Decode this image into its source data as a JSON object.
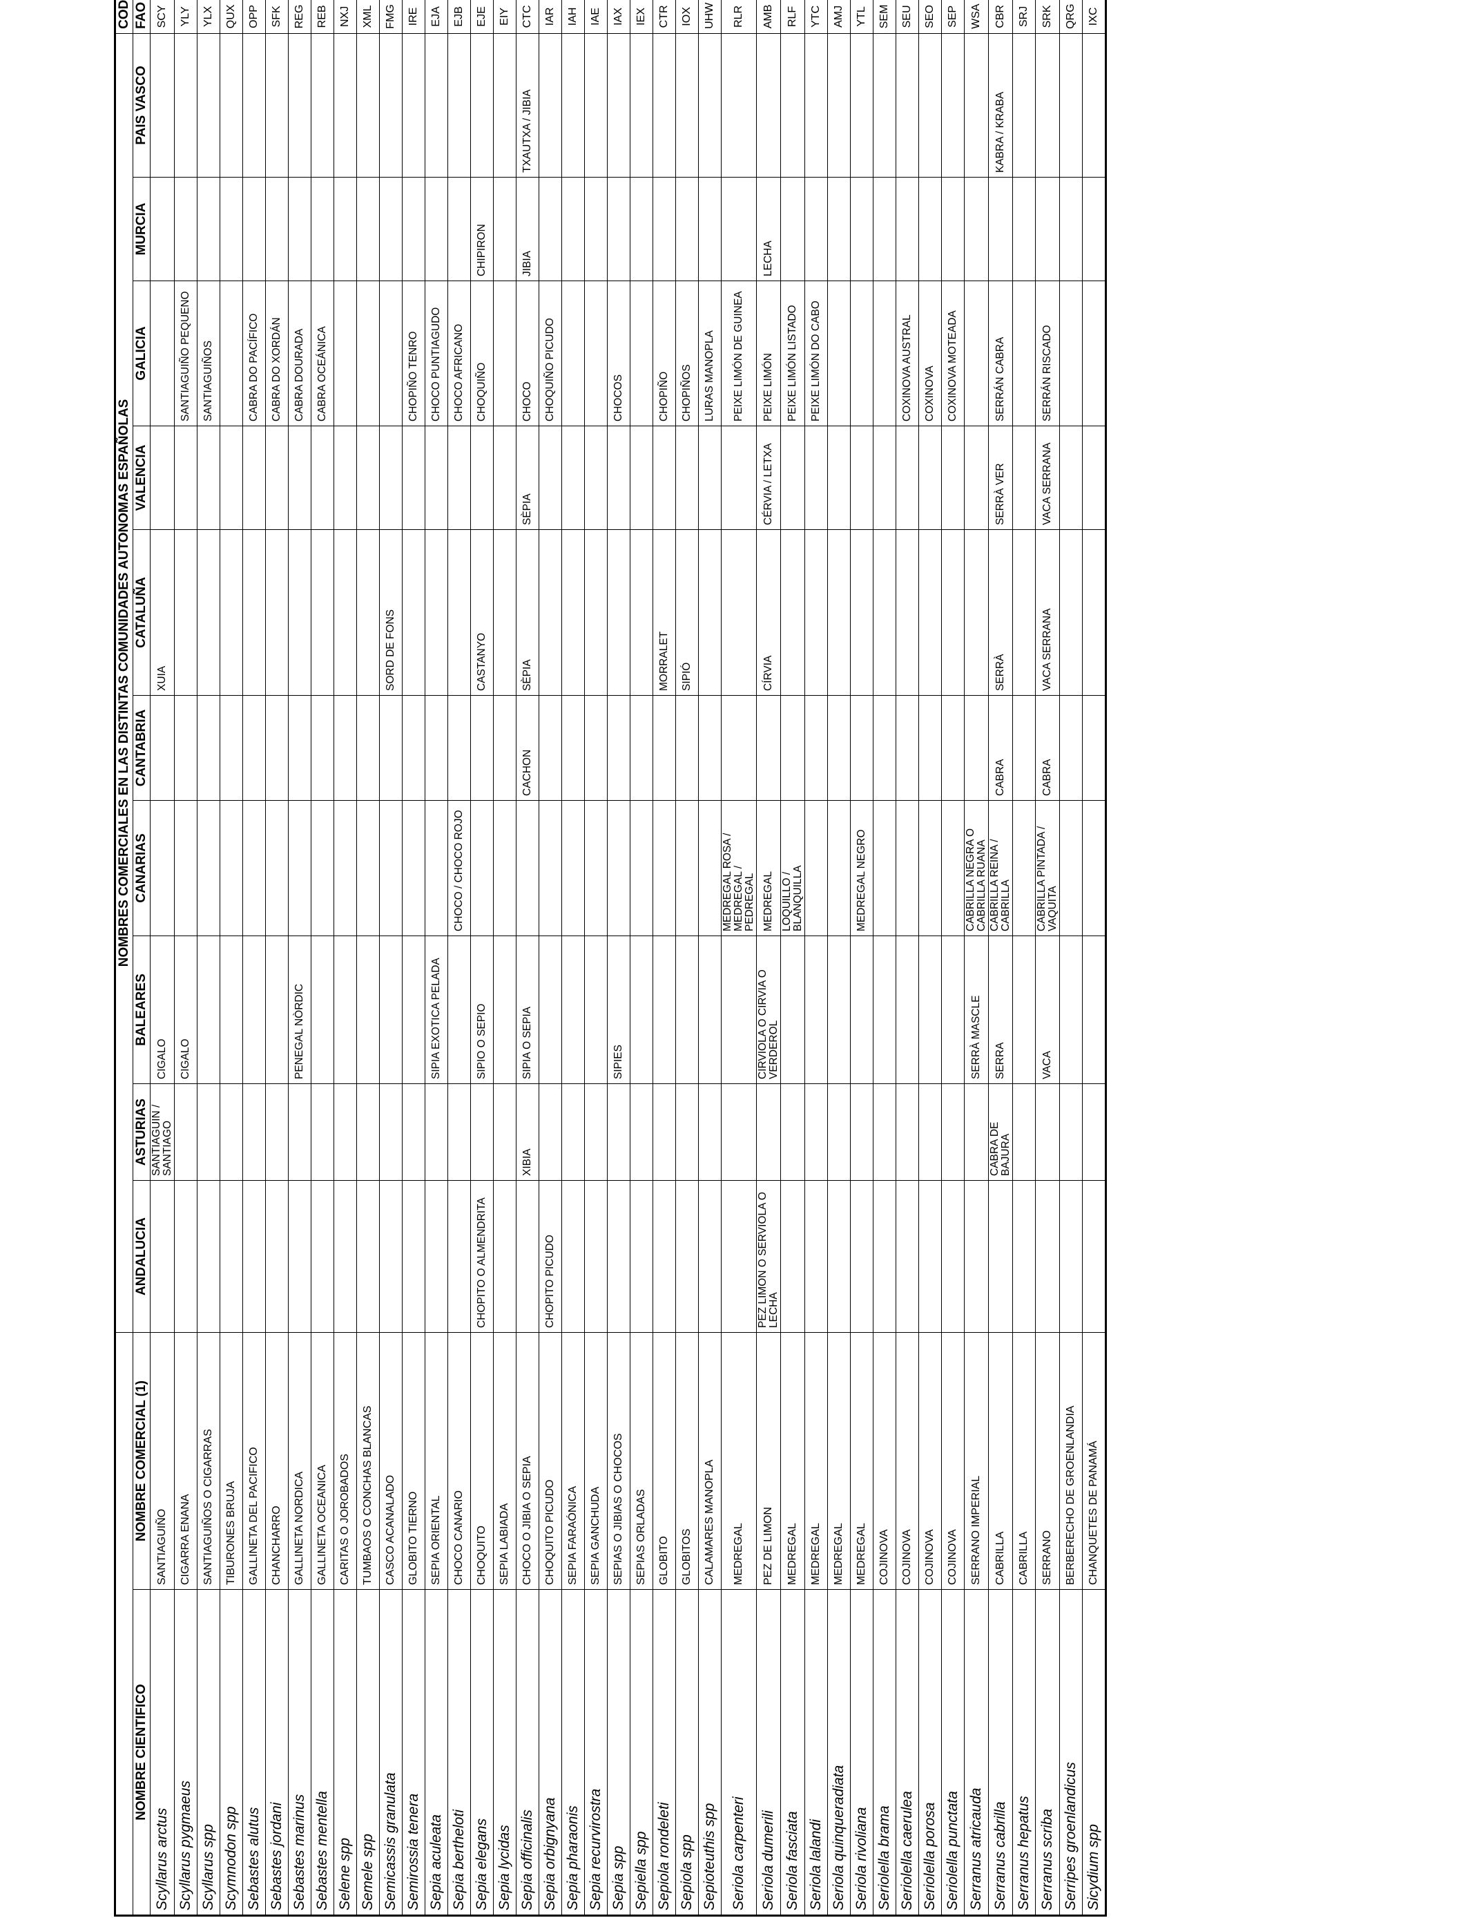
{
  "header": {
    "group_title": "NOMBRES COMERCIALES EN LAS DISTINTAS COMUNIDADES AUTONOMAS ESPAÑOLAS",
    "cod_label": "COD",
    "columns": [
      "NOMBRE CIENTIFICO",
      "NOMBRE COMERCIAL (1)",
      "ANDALUCIA",
      "ASTURIAS",
      "BALEARES",
      "CANARIAS",
      "CANTABRIA",
      "CATALUÑA",
      "VALENCIA",
      "GALICIA",
      "MURCIA",
      "PAIS VASCO",
      "FAO"
    ]
  },
  "rows": [
    [
      "Scyllarus arctus",
      "SANTIAGUIÑO",
      "",
      "SANTIAGUIN / SANTIAGO",
      "CIGALO",
      "",
      "",
      "XUIA",
      "",
      "",
      "",
      "",
      "SCY"
    ],
    [
      "Scyllarus pygmaeus",
      "CIGARRA ENANA",
      "",
      "",
      "CIGALO",
      "",
      "",
      "",
      "",
      "SANTIAGUIÑO PEQUENO",
      "",
      "",
      "YLY"
    ],
    [
      "Scyllarus spp",
      "SANTIAGUIÑOS O CIGARRAS",
      "",
      "",
      "",
      "",
      "",
      "",
      "",
      "SANTIAGUIÑOS",
      "",
      "",
      "YLX"
    ],
    [
      "Scymnodon spp",
      "TIBURONES BRUJA",
      "",
      "",
      "",
      "",
      "",
      "",
      "",
      "",
      "",
      "",
      "QUX"
    ],
    [
      "Sebastes alutus",
      "GALLINETA DEL PACIFICO",
      "",
      "",
      "",
      "",
      "",
      "",
      "",
      "CABRA DO PACÍFICO",
      "",
      "",
      "OPP"
    ],
    [
      "Sebastes jordani",
      "CHANCHARRO",
      "",
      "",
      "",
      "",
      "",
      "",
      "",
      "CABRA DO XORDÁN",
      "",
      "",
      "SFK"
    ],
    [
      "Sebastes marinus",
      "GALLINETA NORDICA",
      "",
      "",
      "PENEGAL NÒRDIC",
      "",
      "",
      "",
      "",
      "CABRA DOURADA",
      "",
      "",
      "REG"
    ],
    [
      "Sebastes mentella",
      "GALLINETA OCEANICA",
      "",
      "",
      "",
      "",
      "",
      "",
      "",
      "CABRA OCEÁNICA",
      "",
      "",
      "REB"
    ],
    [
      "Selene spp",
      "CARITAS O JOROBADOS",
      "",
      "",
      "",
      "",
      "",
      "",
      "",
      "",
      "",
      "",
      "NXJ"
    ],
    [
      "Semele spp",
      "TUMBAOS O CONCHAS BLANCAS",
      "",
      "",
      "",
      "",
      "",
      "",
      "",
      "",
      "",
      "",
      "XML"
    ],
    [
      "Semicassis granulata",
      "CASCO ACANALADO",
      "",
      "",
      "",
      "",
      "",
      "SORD DE FONS",
      "",
      "",
      "",
      "",
      "FMG"
    ],
    [
      "Semirossia tenera",
      "GLOBITO TIERNO",
      "",
      "",
      "",
      "",
      "",
      "",
      "",
      "CHOPIÑO TENRO",
      "",
      "",
      "IRE"
    ],
    [
      "Sepia aculeata",
      "SEPIA ORIENTAL",
      "",
      "",
      "SIPIA EXOTICA PELADA",
      "",
      "",
      "",
      "",
      "CHOCO PUNTIAGUDO",
      "",
      "",
      "EJA"
    ],
    [
      "Sepia bertheloti",
      "CHOCO CANARIO",
      "",
      "",
      "",
      "CHOCO / CHOCO ROJO",
      "",
      "",
      "",
      "CHOCO AFRICANO",
      "",
      "",
      "EJB"
    ],
    [
      "Sepia elegans",
      "CHOQUITO",
      "CHOPITO O ALMENDRITA",
      "",
      "SIPIO O SEPIO",
      "",
      "",
      "CASTANYO",
      "",
      "CHOQUIÑO",
      "CHIPIRON",
      "",
      "EJE"
    ],
    [
      "Sepia lycidas",
      "SEPIA LABIADA",
      "",
      "",
      "",
      "",
      "",
      "",
      "",
      "",
      "",
      "",
      "EIY"
    ],
    [
      "Sepia officinalis",
      "CHOCO O JIBIA O SEPIA",
      "",
      "XIBIA",
      "SIPIA O SEPIA",
      "",
      "CACHON",
      "SÈPIA",
      "SÈPIA",
      "CHOCO",
      "JIBIA",
      "TXAUTXA / JIBIA",
      "CTC"
    ],
    [
      "Sepia orbignyana",
      "CHOQUITO PICUDO",
      "CHOPITO PICUDO",
      "",
      "",
      "",
      "",
      "",
      "",
      "CHOQUIÑO PICUDO",
      "",
      "",
      "IAR"
    ],
    [
      "Sepia pharaonis",
      "SEPIA FARAÓNICA",
      "",
      "",
      "",
      "",
      "",
      "",
      "",
      "",
      "",
      "",
      "IAH"
    ],
    [
      "Sepia recurvirostra",
      "SEPIA GANCHUDA",
      "",
      "",
      "",
      "",
      "",
      "",
      "",
      "",
      "",
      "",
      "IAE"
    ],
    [
      "Sepia spp",
      "SEPIAS O JIBIAS O CHOCOS",
      "",
      "",
      "SIPIES",
      "",
      "",
      "",
      "",
      "CHOCOS",
      "",
      "",
      "IAX"
    ],
    [
      "Sepiella spp",
      "SEPIAS ORLADAS",
      "",
      "",
      "",
      "",
      "",
      "",
      "",
      "",
      "",
      "",
      "IEX"
    ],
    [
      "Sepiola rondeleti",
      "GLOBITO",
      "",
      "",
      "",
      "",
      "",
      "MORRALET",
      "",
      "CHOPIÑO",
      "",
      "",
      "CTR"
    ],
    [
      "Sepiola spp",
      "GLOBITOS",
      "",
      "",
      "",
      "",
      "",
      "SIPIÓ",
      "",
      "CHOPIÑOS",
      "",
      "",
      "IOX"
    ],
    [
      "Sepioteuthis spp",
      "CALAMARES MANOPLA",
      "",
      "",
      "",
      "",
      "",
      "",
      "",
      "LURAS MANOPLA",
      "",
      "",
      "UHW"
    ],
    [
      "Seriola carpenteri",
      "MEDREGAL",
      "",
      "",
      "",
      "MEDREGAL ROSA / MEDREGAL / PEDREGAL",
      "",
      "",
      "",
      "PEIXE LIMÓN DE GUINEA",
      "",
      "",
      "RLR"
    ],
    [
      "Seriola dumerili",
      "PEZ DE LIMON",
      "PEZ LIMON O SERVIOLA O LECHA",
      "",
      "CIRVIOLA O CIRVIA O VERDEROL",
      "MEDREGAL",
      "",
      "CÍRVIA",
      "CÉRVIA / LETXA",
      "PEIXE LIMÓN",
      "LECHA",
      "",
      "AMB"
    ],
    [
      "Seriola fasciata",
      "MEDREGAL",
      "",
      "",
      "",
      "LOQUILLO / BLANQUILLA",
      "",
      "",
      "",
      "PEIXE LIMÓN LISTADO",
      "",
      "",
      "RLF"
    ],
    [
      "Seriola lalandi",
      "MEDREGAL",
      "",
      "",
      "",
      "",
      "",
      "",
      "",
      "PEIXE LIMÓN DO CABO",
      "",
      "",
      "YTC"
    ],
    [
      "Seriola quinqueradiata",
      "MEDREGAL",
      "",
      "",
      "",
      "",
      "",
      "",
      "",
      "",
      "",
      "",
      "AMJ"
    ],
    [
      "Seriola rivoliana",
      "MEDREGAL",
      "",
      "",
      "",
      "MEDREGAL NEGRO",
      "",
      "",
      "",
      "",
      "",
      "",
      "YTL"
    ],
    [
      "Seriolella brama",
      "COJINOVA",
      "",
      "",
      "",
      "",
      "",
      "",
      "",
      "",
      "",
      "",
      "SEM"
    ],
    [
      "Seriolella caerulea",
      "COJINOVA",
      "",
      "",
      "",
      "",
      "",
      "",
      "",
      "COXINOVA AUSTRAL",
      "",
      "",
      "SEU"
    ],
    [
      "Seriolella porosa",
      "COJINOVA",
      "",
      "",
      "",
      "",
      "",
      "",
      "",
      "COXINOVA",
      "",
      "",
      "SEO"
    ],
    [
      "Seriolella punctata",
      "COJINOVA",
      "",
      "",
      "",
      "",
      "",
      "",
      "",
      "COXINOVA MOTEADA",
      "",
      "",
      "SEP"
    ],
    [
      "Serranus atricauda",
      "SERRANO IMPERIAL",
      "",
      "",
      "SERRÀ MASCLE",
      "CABRILLA NEGRA O CABRILLA RUANA",
      "",
      "",
      "",
      "",
      "",
      "",
      "WSA"
    ],
    [
      "Serranus cabrilla",
      "CABRILLA",
      "",
      "CABRA DE BAJURA",
      "SERRA",
      "CABRILLA REINA / CABRILLA",
      "CABRA",
      "SERRÀ",
      "SERRÀ VER",
      "SERRÁN CABRA",
      "",
      "KABRA / KRABA",
      "CBR"
    ],
    [
      "Serranus hepatus",
      "CABRILLA",
      "",
      "",
      "",
      "",
      "",
      "",
      "",
      "",
      "",
      "",
      "SRJ"
    ],
    [
      "Serranus scriba",
      "SERRANO",
      "",
      "",
      "VACA",
      "CABRILLA PINTADA / VAQUITA",
      "CABRA",
      "VACA SERRANA",
      "VACA SERRANA",
      "SERRÁN RISCADO",
      "",
      "",
      "SRK"
    ],
    [
      "Serripes groenlandicus",
      "BERBERECHO DE GROENLANDIA",
      "",
      "",
      "",
      "",
      "",
      "",
      "",
      "",
      "",
      "",
      "QRG"
    ],
    [
      "Sicydium spp",
      "CHANQUETES DE PANAMÁ",
      "",
      "",
      "",
      "",
      "",
      "",
      "",
      "",
      "",
      "",
      "IXC"
    ]
  ]
}
